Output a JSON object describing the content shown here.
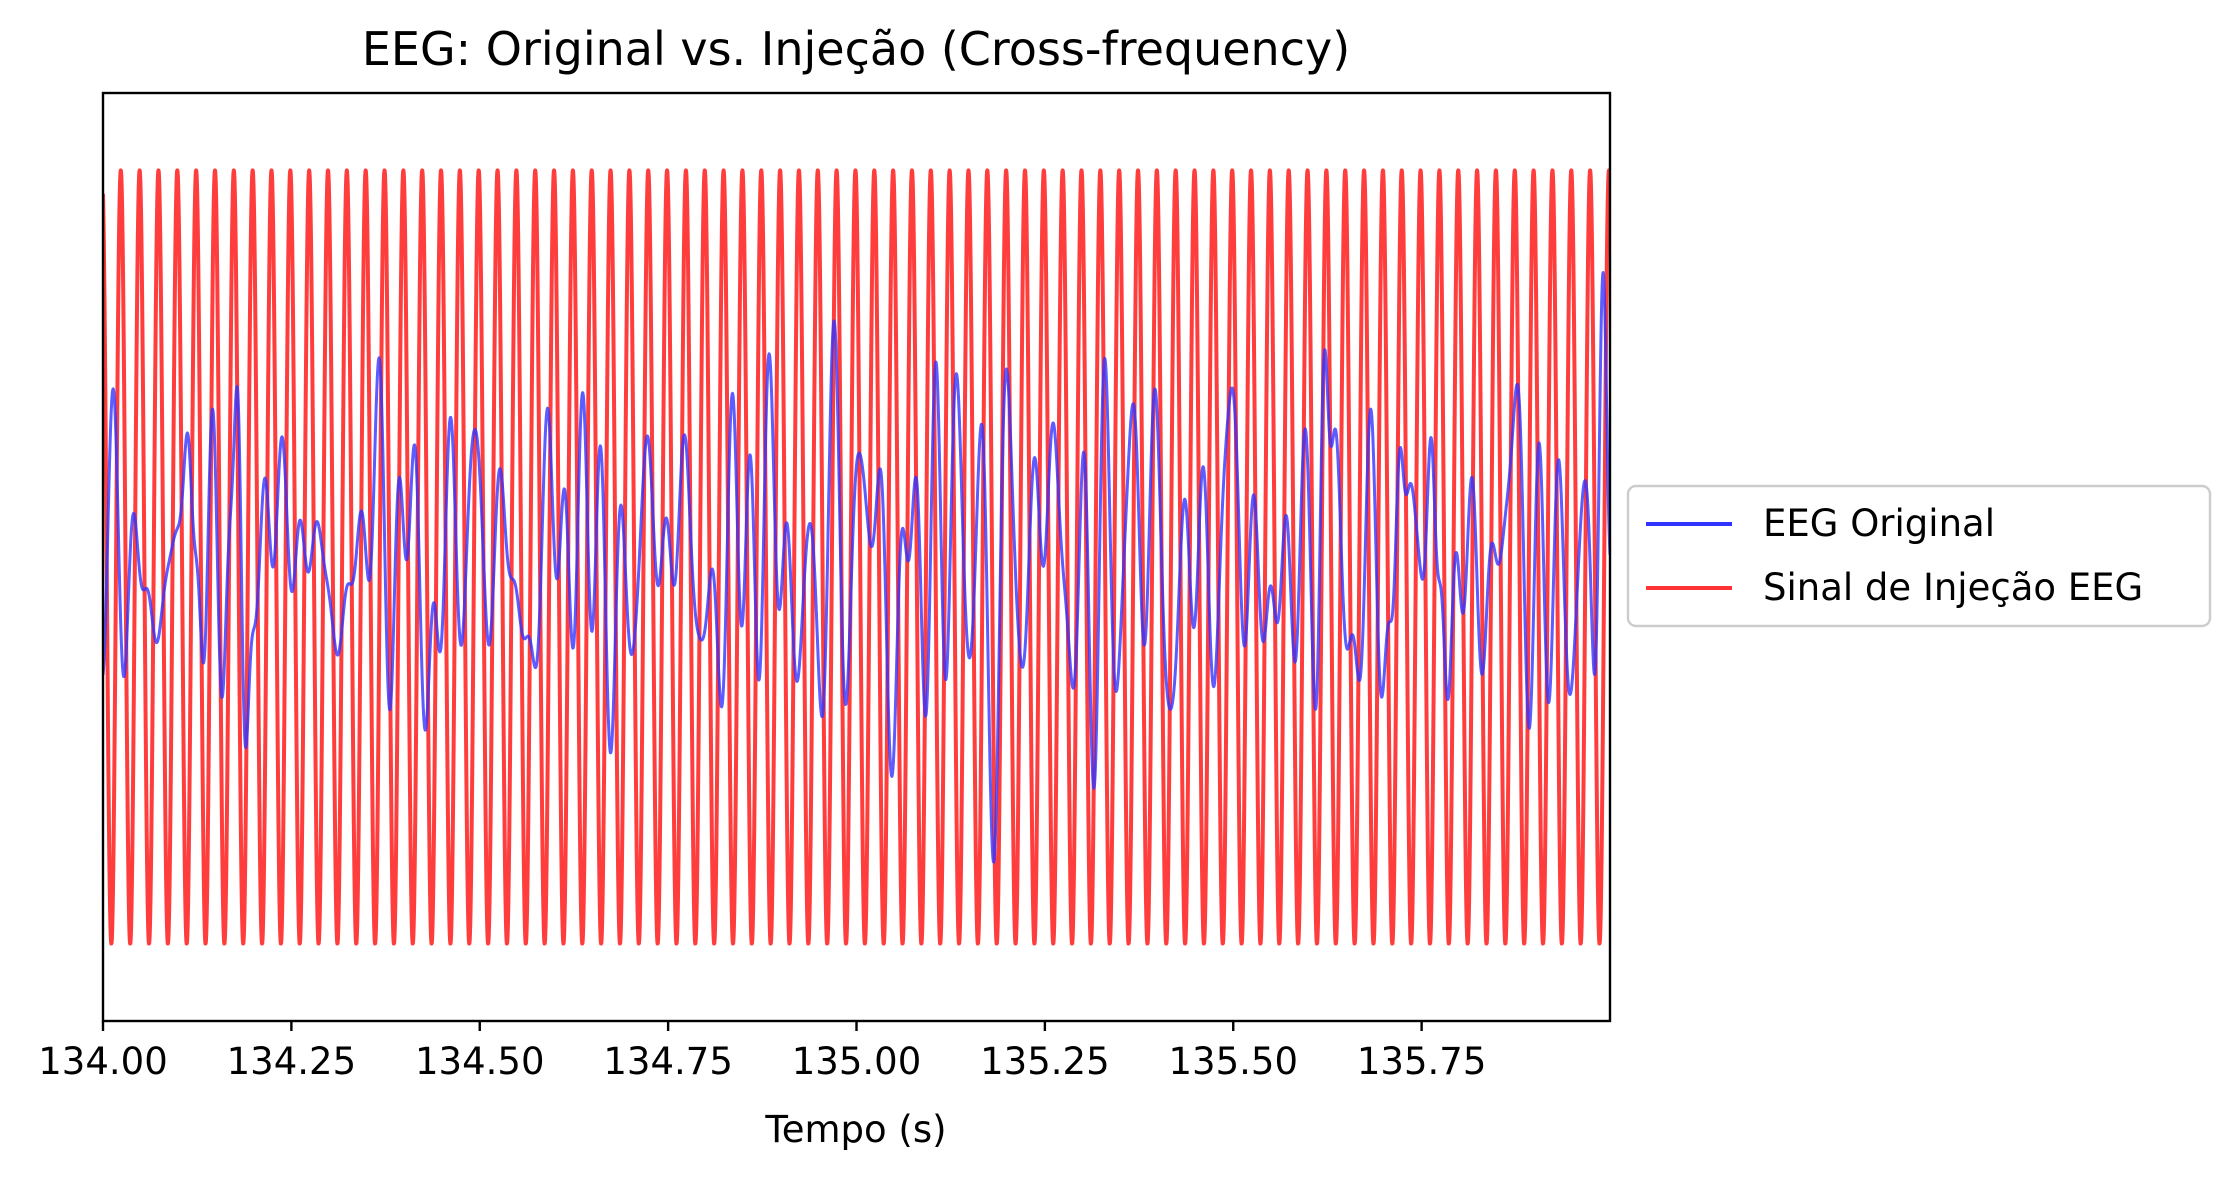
{
  "chart_data": {
    "type": "line",
    "title": "EEG: Original vs. Injeção (Cross-frequency)",
    "xlabel": "Tempo (s)",
    "ylabel": "",
    "xlim": [
      134.0,
      136.0
    ],
    "ylim": [
      -1.2,
      1.2
    ],
    "x_ticks": [
      134.0,
      134.25,
      134.5,
      134.75,
      135.0,
      135.25,
      135.5,
      135.75
    ],
    "x_tick_labels": [
      "134.00",
      "134.25",
      "134.50",
      "134.75",
      "135.00",
      "135.25",
      "135.50",
      "135.75"
    ],
    "y_ticks_visible": false,
    "grid": false,
    "legend_placement": "outside-right",
    "series": [
      {
        "name": "EEG Original",
        "color": "#3333ff",
        "description_values": "irregular EEG trace around 0 with amplitude mostly within ±0.5, peaks near 0.8",
        "x_start": 134.0,
        "x_end": 136.0,
        "approx_range": [
          -0.82,
          0.82
        ]
      },
      {
        "name": "Sinal de Injeção EEG",
        "color": "#ff3333",
        "frequency_hz": 40,
        "amplitude": 1.0,
        "x_start": 134.0,
        "x_end": 136.0
      }
    ]
  }
}
